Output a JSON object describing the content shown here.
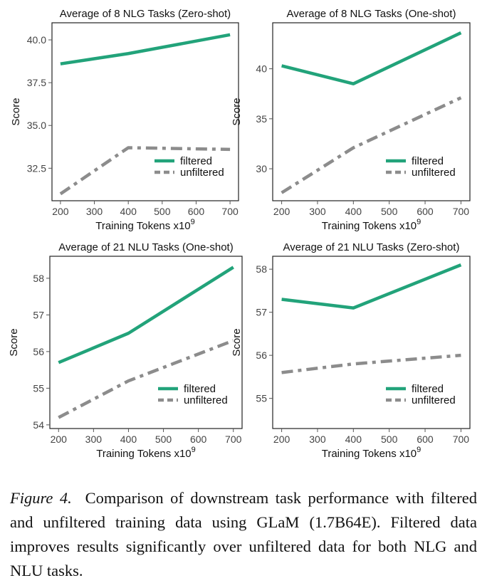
{
  "colors": {
    "filtered": "#22a37a",
    "unfiltered": "#8c8c8c",
    "frame": "#222222"
  },
  "caption": {
    "label": "Figure 4.",
    "text": "Comparison of downstream task performance with filtered and unfiltered training data using GLaM (1.7B64E). Filtered data improves results significantly over unfiltered data for both NLG and NLU tasks."
  },
  "chart_data": [
    {
      "type": "line",
      "title": "Average of 8 NLG Tasks (Zero-shot)",
      "xlabel": "Training Tokens x10",
      "xlabel_sup": "9",
      "ylabel": "Score",
      "x": [
        200,
        400,
        700
      ],
      "xlim": [
        175,
        725
      ],
      "ylim": [
        30.6,
        41.0
      ],
      "xticks": [
        200,
        300,
        400,
        500,
        600,
        700
      ],
      "yticks": [
        32.5,
        35.0,
        37.5,
        40.0
      ],
      "ytick_labels": [
        "32.5",
        "35.0",
        "37.5",
        "40.0"
      ],
      "legend": "bottom-right",
      "series": [
        {
          "name": "filtered",
          "values": [
            38.6,
            39.2,
            40.3
          ]
        },
        {
          "name": "unfiltered",
          "values": [
            31.0,
            33.7,
            33.6
          ]
        }
      ]
    },
    {
      "type": "line",
      "title": "Average of 8 NLG Tasks (One-shot)",
      "xlabel": "Training Tokens x10",
      "xlabel_sup": "9",
      "ylabel": "Score",
      "x": [
        200,
        400,
        700
      ],
      "xlim": [
        175,
        725
      ],
      "ylim": [
        26.8,
        44.6
      ],
      "xticks": [
        200,
        300,
        400,
        500,
        600,
        700
      ],
      "yticks": [
        30,
        35,
        40
      ],
      "ytick_labels": [
        "30",
        "35",
        "40"
      ],
      "legend": "bottom-right",
      "series": [
        {
          "name": "filtered",
          "values": [
            40.3,
            38.5,
            43.6
          ]
        },
        {
          "name": "unfiltered",
          "values": [
            27.6,
            32.1,
            37.1
          ]
        }
      ]
    },
    {
      "type": "line",
      "title": "Average of 21 NLU Tasks (One-shot)",
      "xlabel": "Training Tokens x10",
      "xlabel_sup": "9",
      "ylabel": "Score",
      "x": [
        200,
        400,
        700
      ],
      "xlim": [
        175,
        725
      ],
      "ylim": [
        53.9,
        58.6
      ],
      "xticks": [
        200,
        300,
        400,
        500,
        600,
        700
      ],
      "yticks": [
        54,
        55,
        56,
        57,
        58
      ],
      "ytick_labels": [
        "54",
        "55",
        "56",
        "57",
        "58"
      ],
      "legend": "bottom-right",
      "series": [
        {
          "name": "filtered",
          "values": [
            55.7,
            56.5,
            58.3
          ]
        },
        {
          "name": "unfiltered",
          "values": [
            54.2,
            55.2,
            56.3
          ]
        }
      ]
    },
    {
      "type": "line",
      "title": "Average of 21 NLU Tasks (Zero-shot)",
      "xlabel": "Training Tokens x10",
      "xlabel_sup": "9",
      "ylabel": "Score",
      "x": [
        200,
        400,
        700
      ],
      "xlim": [
        175,
        725
      ],
      "ylim": [
        54.3,
        58.3
      ],
      "xticks": [
        200,
        300,
        400,
        500,
        600,
        700
      ],
      "yticks": [
        55,
        56,
        57,
        58
      ],
      "ytick_labels": [
        "55",
        "56",
        "57",
        "58"
      ],
      "legend": "bottom-right",
      "series": [
        {
          "name": "filtered",
          "values": [
            57.3,
            57.1,
            58.1
          ]
        },
        {
          "name": "unfiltered",
          "values": [
            55.6,
            55.8,
            56.0
          ]
        }
      ]
    }
  ]
}
